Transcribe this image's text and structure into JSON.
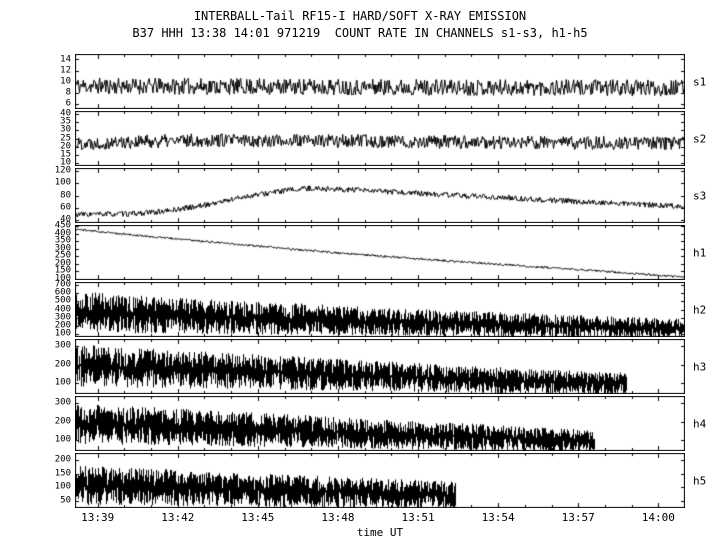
{
  "chart_data": {
    "type": "line",
    "title": "INTERBALL-Tail RF15-I HARD/SOFT X-RAY EMISSION",
    "subtitle": "B37 HHH 13:38 14:01 971219  COUNT RATE IN CHANNELS s1-s3, h1-h5",
    "xlabel": "time UT",
    "x_range_min_of_day": [
      818.15,
      841.0
    ],
    "xticks": [
      {
        "label": "13:39",
        "t": 819
      },
      {
        "label": "13:42",
        "t": 822
      },
      {
        "label": "13:45",
        "t": 825
      },
      {
        "label": "13:48",
        "t": 828
      },
      {
        "label": "13:51",
        "t": 831
      },
      {
        "label": "13:54",
        "t": 834
      },
      {
        "label": "13:57",
        "t": 837
      },
      {
        "label": "14:00",
        "t": 840
      }
    ],
    "panels": [
      {
        "label": "s1",
        "ylim": [
          5,
          15
        ],
        "yticks": [
          6,
          8,
          10,
          12,
          14
        ],
        "trend": [
          [
            818.15,
            9.2
          ],
          [
            841,
            8.8
          ]
        ],
        "noise": 1.5,
        "seed": 11
      },
      {
        "label": "s2",
        "ylim": [
          8,
          42
        ],
        "yticks": [
          10,
          15,
          20,
          25,
          30,
          35,
          40
        ],
        "trend": [
          [
            818.15,
            22
          ],
          [
            823,
            24
          ],
          [
            828,
            23.5
          ],
          [
            834,
            22.5
          ],
          [
            841,
            22
          ]
        ],
        "noise": 4.2,
        "seed": 22
      },
      {
        "label": "s3",
        "ylim": [
          35,
          125
        ],
        "yticks": [
          40,
          60,
          80,
          100,
          120
        ],
        "trend": [
          [
            818.15,
            49
          ],
          [
            820.3,
            50
          ],
          [
            821.5,
            54
          ],
          [
            823,
            64
          ],
          [
            824.5,
            78
          ],
          [
            826,
            88
          ],
          [
            827,
            92
          ],
          [
            828.5,
            89
          ],
          [
            830,
            86
          ],
          [
            832,
            81
          ],
          [
            834,
            77
          ],
          [
            836,
            72
          ],
          [
            838,
            68
          ],
          [
            841,
            62
          ]
        ],
        "noise": 4.5,
        "seed": 33
      },
      {
        "label": "h1",
        "ylim": [
          90,
          460
        ],
        "yticks": [
          100,
          150,
          200,
          250,
          300,
          350,
          400,
          450
        ],
        "trend": [
          [
            818.15,
            432
          ],
          [
            820,
            398
          ],
          [
            822,
            366
          ],
          [
            824,
            334
          ],
          [
            826,
            302
          ],
          [
            828,
            272
          ],
          [
            830,
            246
          ],
          [
            832,
            220
          ],
          [
            834,
            196
          ],
          [
            836,
            172
          ],
          [
            838,
            148
          ],
          [
            840,
            122
          ],
          [
            841,
            108
          ]
        ],
        "noise": 7,
        "seed": 44
      },
      {
        "label": "h2",
        "ylim": [
          60,
          740
        ],
        "yticks": [
          100,
          200,
          300,
          400,
          500,
          600,
          700
        ],
        "band": true,
        "trend": [
          [
            818.15,
            370
          ],
          [
            820,
            345
          ],
          [
            822,
            322
          ],
          [
            824,
            302
          ],
          [
            826,
            285
          ],
          [
            828,
            268
          ],
          [
            830,
            250
          ],
          [
            832,
            233
          ],
          [
            834,
            216
          ],
          [
            836,
            200
          ],
          [
            838,
            186
          ],
          [
            840,
            172
          ],
          [
            841,
            166
          ]
        ],
        "noise": 5,
        "noise_rel": 0.68,
        "seed": 55
      },
      {
        "label": "h3",
        "ylim": [
          40,
          340
        ],
        "yticks": [
          100,
          200,
          300
        ],
        "band": true,
        "trend": [
          [
            818.15,
            195
          ],
          [
            821,
            180
          ],
          [
            824,
            165
          ],
          [
            827,
            150
          ],
          [
            830,
            135
          ],
          [
            833,
            120
          ],
          [
            836,
            106
          ],
          [
            838.8,
            97
          ]
        ],
        "end": 838.8,
        "noise": 8,
        "noise_rel": 0.55,
        "seed": 66
      },
      {
        "label": "h4",
        "ylim": [
          40,
          340
        ],
        "yticks": [
          100,
          200,
          300
        ],
        "band": true,
        "trend": [
          [
            818.15,
            190
          ],
          [
            821,
            176
          ],
          [
            824,
            160
          ],
          [
            827,
            146
          ],
          [
            830,
            130
          ],
          [
            833,
            117
          ],
          [
            836,
            102
          ],
          [
            837.6,
            95
          ]
        ],
        "end": 837.6,
        "noise": 8,
        "noise_rel": 0.55,
        "seed": 77
      },
      {
        "label": "h5",
        "ylim": [
          25,
          225
        ],
        "yticks": [
          50,
          100,
          150,
          200
        ],
        "band": true,
        "trend": [
          [
            818.15,
            108
          ],
          [
            821,
            101
          ],
          [
            824,
            93
          ],
          [
            827,
            85
          ],
          [
            830,
            78
          ],
          [
            832.4,
            72
          ]
        ],
        "end": 832.4,
        "noise": 5,
        "noise_rel": 0.62,
        "seed": 88
      }
    ]
  }
}
